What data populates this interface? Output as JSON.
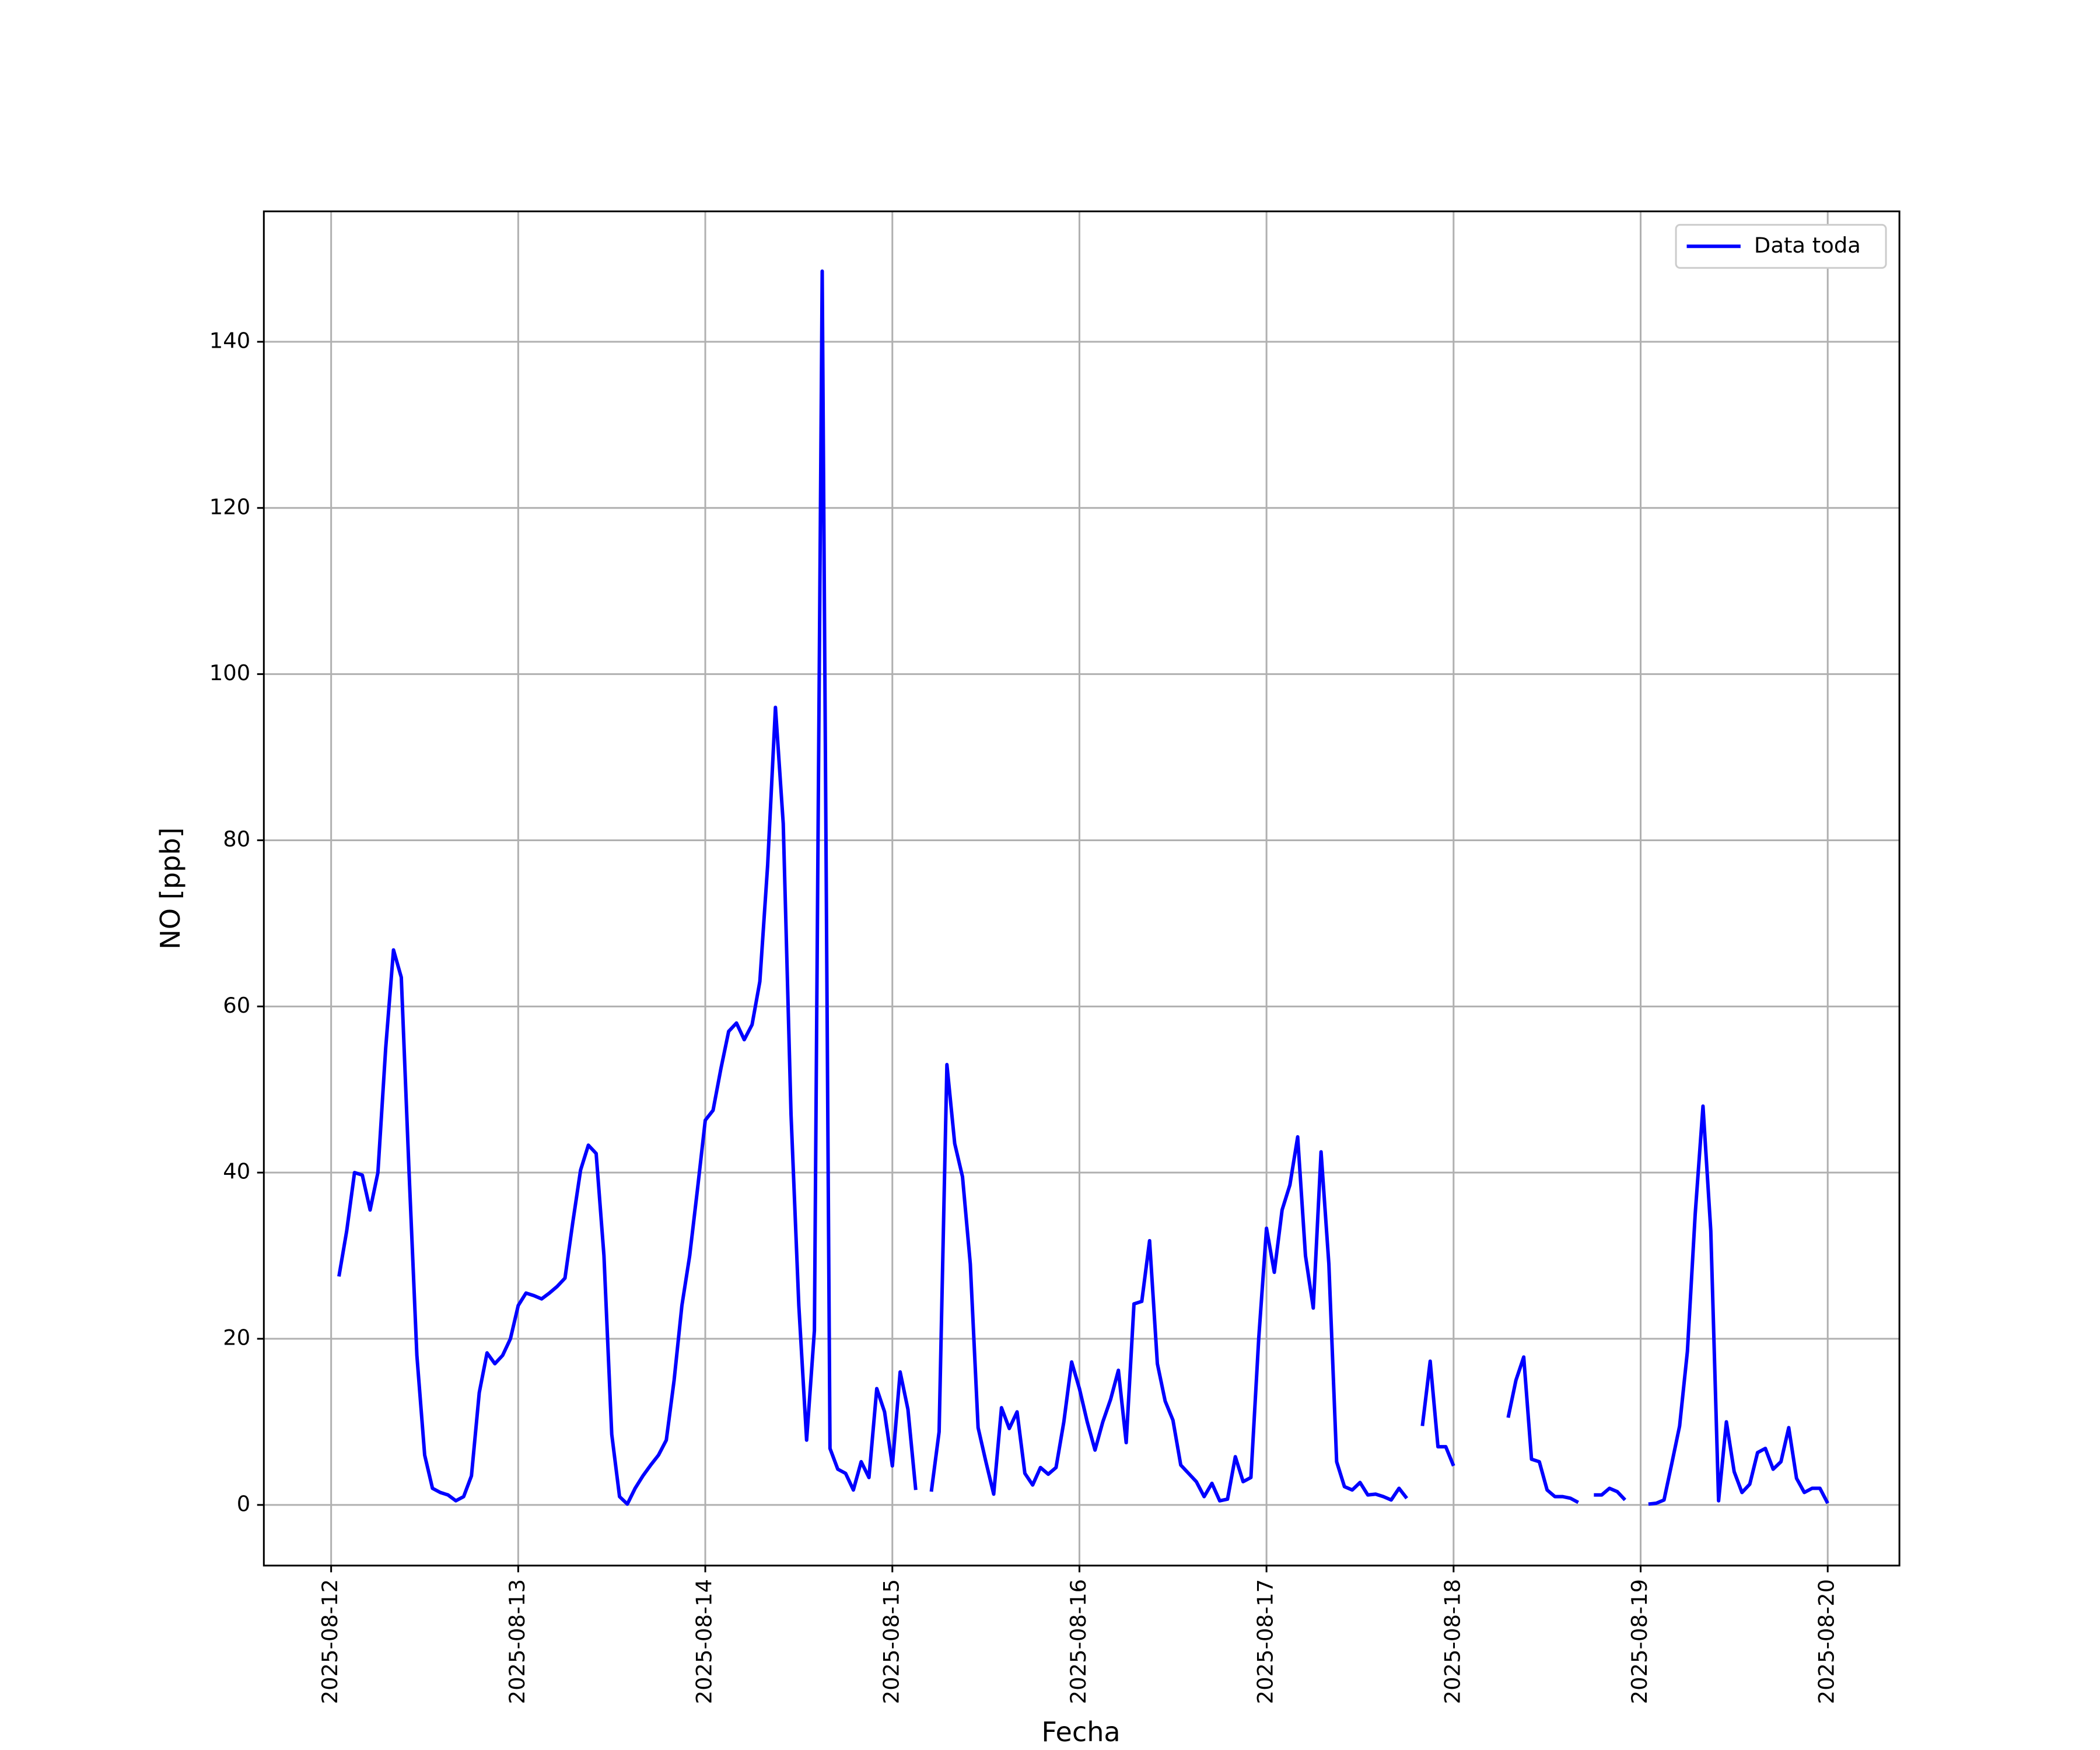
{
  "chart_data": {
    "type": "line",
    "x_label": "Fecha",
    "y_label": "NO [ppb]",
    "x": [
      "2025-08-12T01:00",
      "2025-08-12T02:00",
      "2025-08-12T03:00",
      "2025-08-12T04:00",
      "2025-08-12T05:00",
      "2025-08-12T06:00",
      "2025-08-12T07:00",
      "2025-08-12T08:00",
      "2025-08-12T09:00",
      "2025-08-12T10:00",
      "2025-08-12T11:00",
      "2025-08-12T12:00",
      "2025-08-12T13:00",
      "2025-08-12T14:00",
      "2025-08-12T15:00",
      "2025-08-12T16:00",
      "2025-08-12T17:00",
      "2025-08-12T18:00",
      "2025-08-12T19:00",
      "2025-08-12T20:00",
      "2025-08-12T21:00",
      "2025-08-12T22:00",
      "2025-08-12T23:00",
      "2025-08-13T00:00",
      "2025-08-13T01:00",
      "2025-08-13T02:00",
      "2025-08-13T03:00",
      "2025-08-13T04:00",
      "2025-08-13T05:00",
      "2025-08-13T06:00",
      "2025-08-13T07:00",
      "2025-08-13T08:00",
      "2025-08-13T09:00",
      "2025-08-13T10:00",
      "2025-08-13T11:00",
      "2025-08-13T12:00",
      "2025-08-13T13:00",
      "2025-08-13T14:00",
      "2025-08-13T15:00",
      "2025-08-13T16:00",
      "2025-08-13T17:00",
      "2025-08-13T18:00",
      "2025-08-13T19:00",
      "2025-08-13T20:00",
      "2025-08-13T21:00",
      "2025-08-13T22:00",
      "2025-08-13T23:00",
      "2025-08-14T00:00",
      "2025-08-14T01:00",
      "2025-08-14T02:00",
      "2025-08-14T03:00",
      "2025-08-14T04:00",
      "2025-08-14T05:00",
      "2025-08-14T06:00",
      "2025-08-14T07:00",
      "2025-08-14T08:00",
      "2025-08-14T09:00",
      "2025-08-14T10:00",
      "2025-08-14T11:00",
      "2025-08-14T12:00",
      "2025-08-14T13:00",
      "2025-08-14T14:00",
      "2025-08-14T15:00",
      "2025-08-14T16:00",
      "2025-08-14T17:00",
      "2025-08-14T18:00",
      "2025-08-14T19:00",
      "2025-08-14T20:00",
      "2025-08-14T21:00",
      "2025-08-14T22:00",
      "2025-08-14T23:00",
      "2025-08-15T00:00",
      "2025-08-15T01:00",
      "2025-08-15T02:00",
      "2025-08-15T03:00",
      "2025-08-15T04:00",
      "2025-08-15T05:00",
      "2025-08-15T06:00",
      "2025-08-15T07:00",
      "2025-08-15T08:00",
      "2025-08-15T09:00",
      "2025-08-15T10:00",
      "2025-08-15T11:00",
      "2025-08-15T12:00",
      "2025-08-15T13:00",
      "2025-08-15T14:00",
      "2025-08-15T15:00",
      "2025-08-15T16:00",
      "2025-08-15T17:00",
      "2025-08-15T18:00",
      "2025-08-15T19:00",
      "2025-08-15T20:00",
      "2025-08-15T21:00",
      "2025-08-15T22:00",
      "2025-08-15T23:00",
      "2025-08-16T00:00",
      "2025-08-16T01:00",
      "2025-08-16T02:00",
      "2025-08-16T03:00",
      "2025-08-16T04:00",
      "2025-08-16T05:00",
      "2025-08-16T06:00",
      "2025-08-16T07:00",
      "2025-08-16T08:00",
      "2025-08-16T09:00",
      "2025-08-16T10:00",
      "2025-08-16T11:00",
      "2025-08-16T12:00",
      "2025-08-16T13:00",
      "2025-08-16T14:00",
      "2025-08-16T15:00",
      "2025-08-16T16:00",
      "2025-08-16T17:00",
      "2025-08-16T18:00",
      "2025-08-16T19:00",
      "2025-08-16T20:00",
      "2025-08-16T21:00",
      "2025-08-16T22:00",
      "2025-08-16T23:00",
      "2025-08-17T00:00",
      "2025-08-17T01:00",
      "2025-08-17T02:00",
      "2025-08-17T03:00",
      "2025-08-17T04:00",
      "2025-08-17T05:00",
      "2025-08-17T06:00",
      "2025-08-17T07:00",
      "2025-08-17T08:00",
      "2025-08-17T09:00",
      "2025-08-17T10:00",
      "2025-08-17T11:00",
      "2025-08-17T12:00",
      "2025-08-17T13:00",
      "2025-08-17T14:00",
      "2025-08-17T15:00",
      "2025-08-17T16:00",
      "2025-08-17T17:00",
      "2025-08-17T18:00",
      "2025-08-17T19:00",
      "2025-08-17T20:00",
      "2025-08-17T21:00",
      "2025-08-17T22:00",
      "2025-08-17T23:00",
      "2025-08-18T00:00",
      "2025-08-18T01:00",
      "2025-08-18T02:00",
      "2025-08-18T03:00",
      "2025-08-18T04:00",
      "2025-08-18T05:00",
      "2025-08-18T06:00",
      "2025-08-18T07:00",
      "2025-08-18T08:00",
      "2025-08-18T09:00",
      "2025-08-18T10:00",
      "2025-08-18T11:00",
      "2025-08-18T12:00",
      "2025-08-18T13:00",
      "2025-08-18T14:00",
      "2025-08-18T15:00",
      "2025-08-18T16:00",
      "2025-08-18T17:00",
      "2025-08-18T18:00",
      "2025-08-18T19:00",
      "2025-08-18T20:00",
      "2025-08-18T21:00",
      "2025-08-18T22:00",
      "2025-08-18T23:00",
      "2025-08-19T00:00",
      "2025-08-19T01:00",
      "2025-08-19T02:00",
      "2025-08-19T03:00",
      "2025-08-19T04:00",
      "2025-08-19T05:00",
      "2025-08-19T06:00",
      "2025-08-19T07:00",
      "2025-08-19T08:00",
      "2025-08-19T09:00",
      "2025-08-19T10:00",
      "2025-08-19T11:00",
      "2025-08-19T12:00",
      "2025-08-19T13:00",
      "2025-08-19T14:00",
      "2025-08-19T15:00",
      "2025-08-19T16:00",
      "2025-08-19T17:00",
      "2025-08-19T18:00",
      "2025-08-19T19:00",
      "2025-08-19T20:00",
      "2025-08-19T21:00",
      "2025-08-19T22:00",
      "2025-08-19T23:00",
      "2025-08-20T00:00"
    ],
    "series": [
      {
        "name": "Data toda",
        "color": "#0000ff",
        "values": [
          27.5,
          33,
          40,
          39.7,
          35.5,
          40,
          55,
          66.8,
          63.5,
          40,
          18,
          6,
          2,
          1.5,
          1.2,
          0.5,
          1,
          3.5,
          13.5,
          18.3,
          17,
          18,
          20,
          24,
          25.5,
          25.2,
          24.8,
          25.5,
          26.3,
          27.3,
          34,
          40.3,
          43.3,
          42.3,
          30,
          8.5,
          1,
          0.1,
          2,
          3.5,
          4.8,
          6,
          7.8,
          15,
          24,
          30,
          38,
          46.3,
          47.5,
          52.5,
          57,
          58,
          56,
          57.8,
          63,
          77,
          96,
          82,
          47,
          24,
          7.8,
          21,
          148.5,
          6.8,
          4.3,
          3.8,
          1.8,
          5.2,
          3.3,
          14,
          11.2,
          4.7,
          16,
          11.5,
          1.8,
          null,
          1.6,
          8.8,
          53,
          43.5,
          39.5,
          29,
          9.3,
          5.2,
          1.3,
          11.7,
          9.2,
          11.2,
          3.8,
          2.4,
          4.5,
          3.7,
          4.5,
          10,
          17.2,
          14,
          10,
          6.6,
          10,
          12.7,
          16.2,
          7.5,
          24.2,
          24.5,
          31.8,
          17,
          12.5,
          10.2,
          4.8,
          3.8,
          2.8,
          1,
          2.6,
          0.5,
          0.7,
          5.8,
          2.8,
          3.3,
          20,
          33.3,
          28,
          35.5,
          38.5,
          44.3,
          30,
          23.7,
          42.5,
          29,
          5.2,
          2.2,
          1.8,
          2.7,
          1.2,
          1.3,
          1,
          0.6,
          2,
          0.8,
          null,
          9.5,
          17.3,
          7,
          7,
          4.7,
          null,
          null,
          null,
          null,
          null,
          null,
          10.5,
          15,
          17.8,
          5.5,
          5.2,
          1.8,
          1,
          1,
          0.8,
          0.3,
          null,
          1.2,
          1.2,
          2,
          1.6,
          0.6,
          null,
          null,
          0.1,
          0.2,
          0.6,
          5,
          9.5,
          18.5,
          35,
          48,
          33,
          0.5,
          10,
          4,
          1.5,
          2.5,
          6.3,
          6.8,
          4.3,
          5.2,
          9.3,
          3.2,
          1.5,
          2,
          2,
          0.2
        ]
      }
    ],
    "xlim": [
      "2025-08-11T15:22",
      "2025-08-20T09:12"
    ],
    "xticks": [
      "2025-08-12",
      "2025-08-13",
      "2025-08-14",
      "2025-08-15",
      "2025-08-16",
      "2025-08-17",
      "2025-08-18",
      "2025-08-19",
      "2025-08-20"
    ],
    "ylim": [
      -7.3,
      155.7
    ],
    "yticks": [
      0,
      20,
      40,
      60,
      80,
      100,
      120,
      140
    ],
    "grid": true,
    "legend": "upper right"
  }
}
